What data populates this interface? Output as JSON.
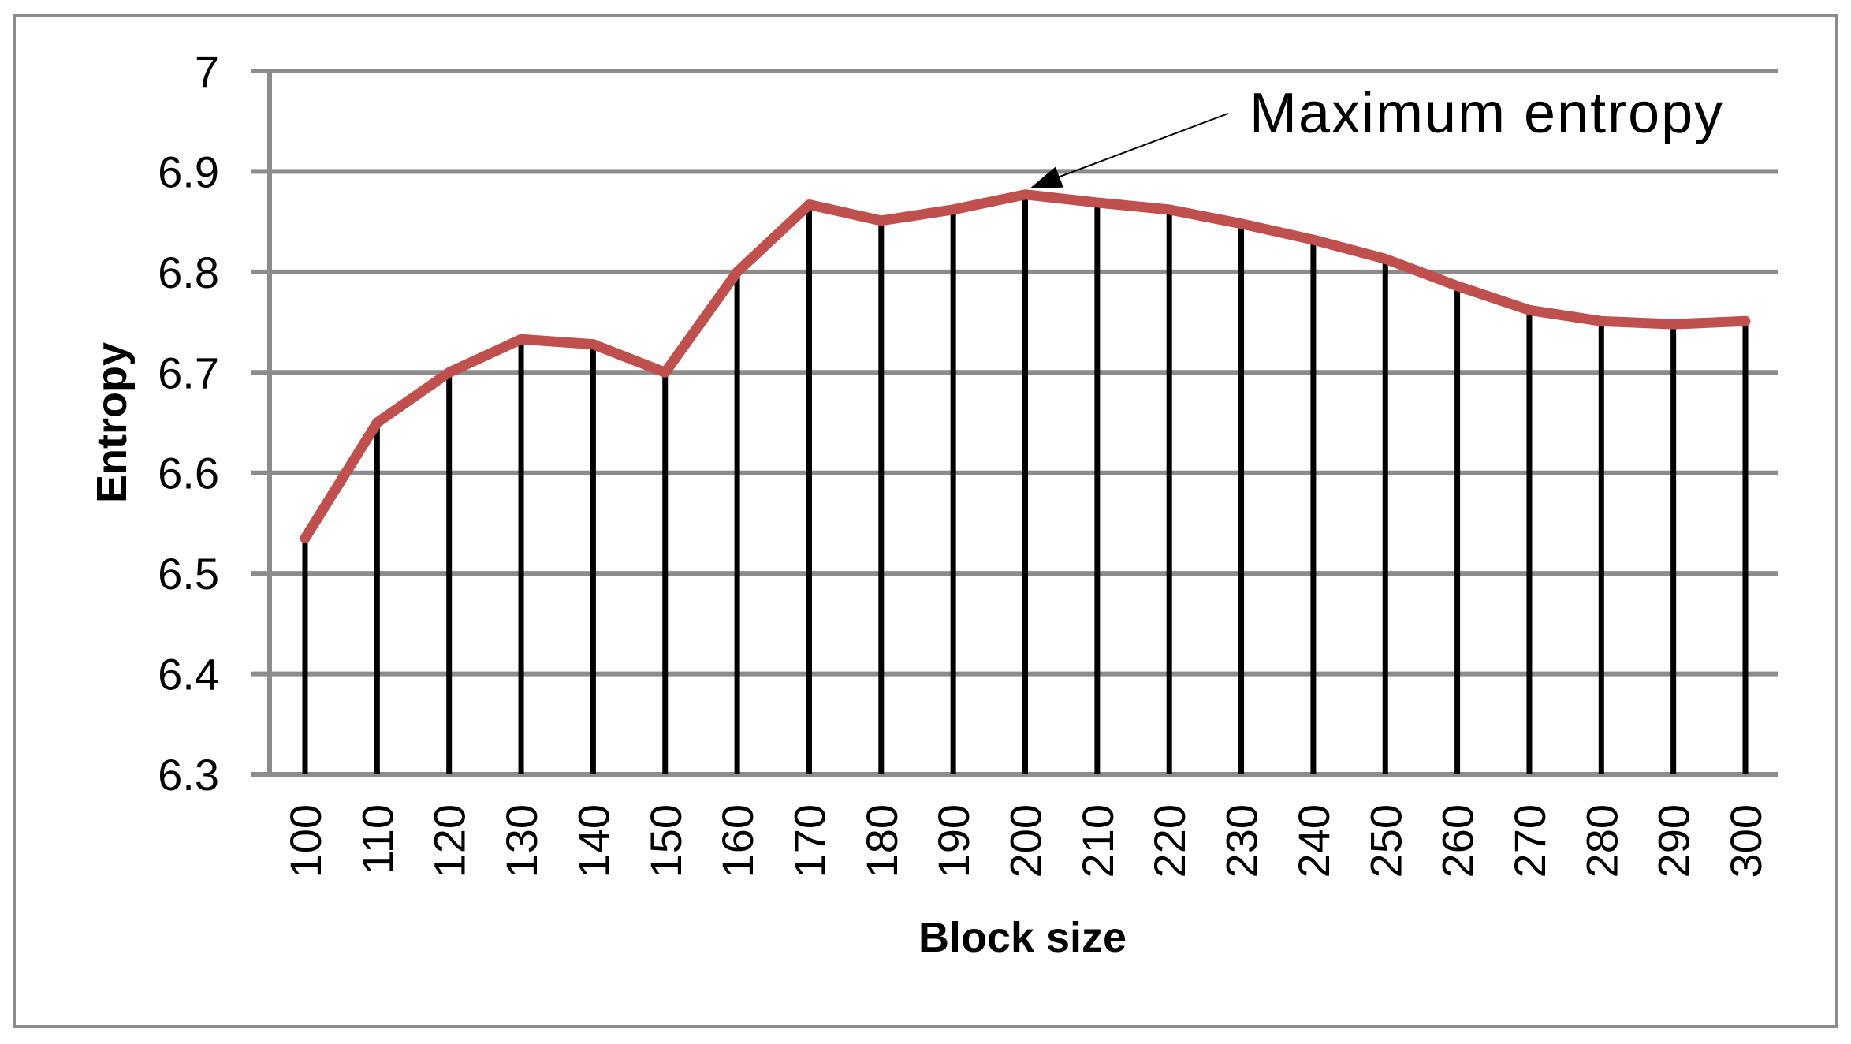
{
  "chart_data": {
    "type": "line",
    "xlabel": "Block size",
    "ylabel": "Entropy",
    "categories": [
      "100",
      "110",
      "120",
      "130",
      "140",
      "150",
      "160",
      "170",
      "180",
      "190",
      "200",
      "210",
      "220",
      "230",
      "240",
      "250",
      "260",
      "270",
      "280",
      "290",
      "300"
    ],
    "series": [
      {
        "values": [
          6.535,
          6.65,
          6.7,
          6.733,
          6.728,
          6.7,
          6.8,
          6.867,
          6.851,
          6.862,
          6.877,
          6.869,
          6.862,
          6.848,
          6.832,
          6.813,
          6.786,
          6.762,
          6.751,
          6.748,
          6.751
        ],
        "color": "#c0504d"
      }
    ],
    "ylim": [
      6.3,
      7.0
    ],
    "yticks": [
      "6.3",
      "6.4",
      "6.5",
      "6.6",
      "6.7",
      "6.8",
      "6.9",
      "7"
    ],
    "grid": true,
    "drop_lines": true,
    "annotation": {
      "text": "Maximum entropy",
      "target_category": "200"
    },
    "colors": {
      "line": "#c0504d",
      "grid": "#8c8c8c",
      "drop_line": "#000000",
      "frame": "#8c8c8c"
    }
  }
}
